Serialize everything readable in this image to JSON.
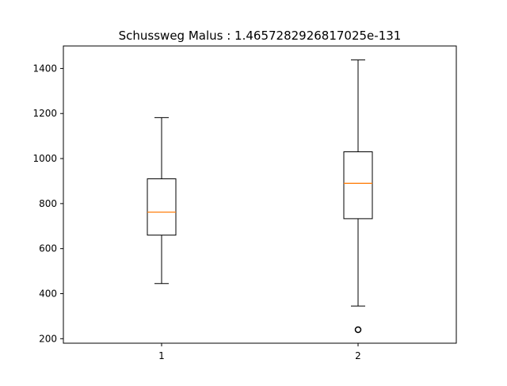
{
  "chart_data": {
    "type": "boxplot",
    "title": "Schussweg Malus :  1.4657282926817025e-131",
    "xlabel": "",
    "ylabel": "",
    "categories": [
      "1",
      "2"
    ],
    "ylim": [
      180,
      1500
    ],
    "yticks": [
      200,
      400,
      600,
      800,
      1000,
      1200,
      1400
    ],
    "grid": false,
    "boxes": [
      {
        "category": "1",
        "whisker_low": 445,
        "q1": 660,
        "median": 762,
        "q3": 910,
        "whisker_high": 1182,
        "outliers": []
      },
      {
        "category": "2",
        "whisker_low": 345,
        "q1": 733,
        "median": 890,
        "q3": 1030,
        "whisker_high": 1438,
        "outliers": [
          240
        ]
      }
    ],
    "colors": {
      "box": "#000000",
      "median": "#ff7f0e",
      "axes": "#000000"
    }
  }
}
